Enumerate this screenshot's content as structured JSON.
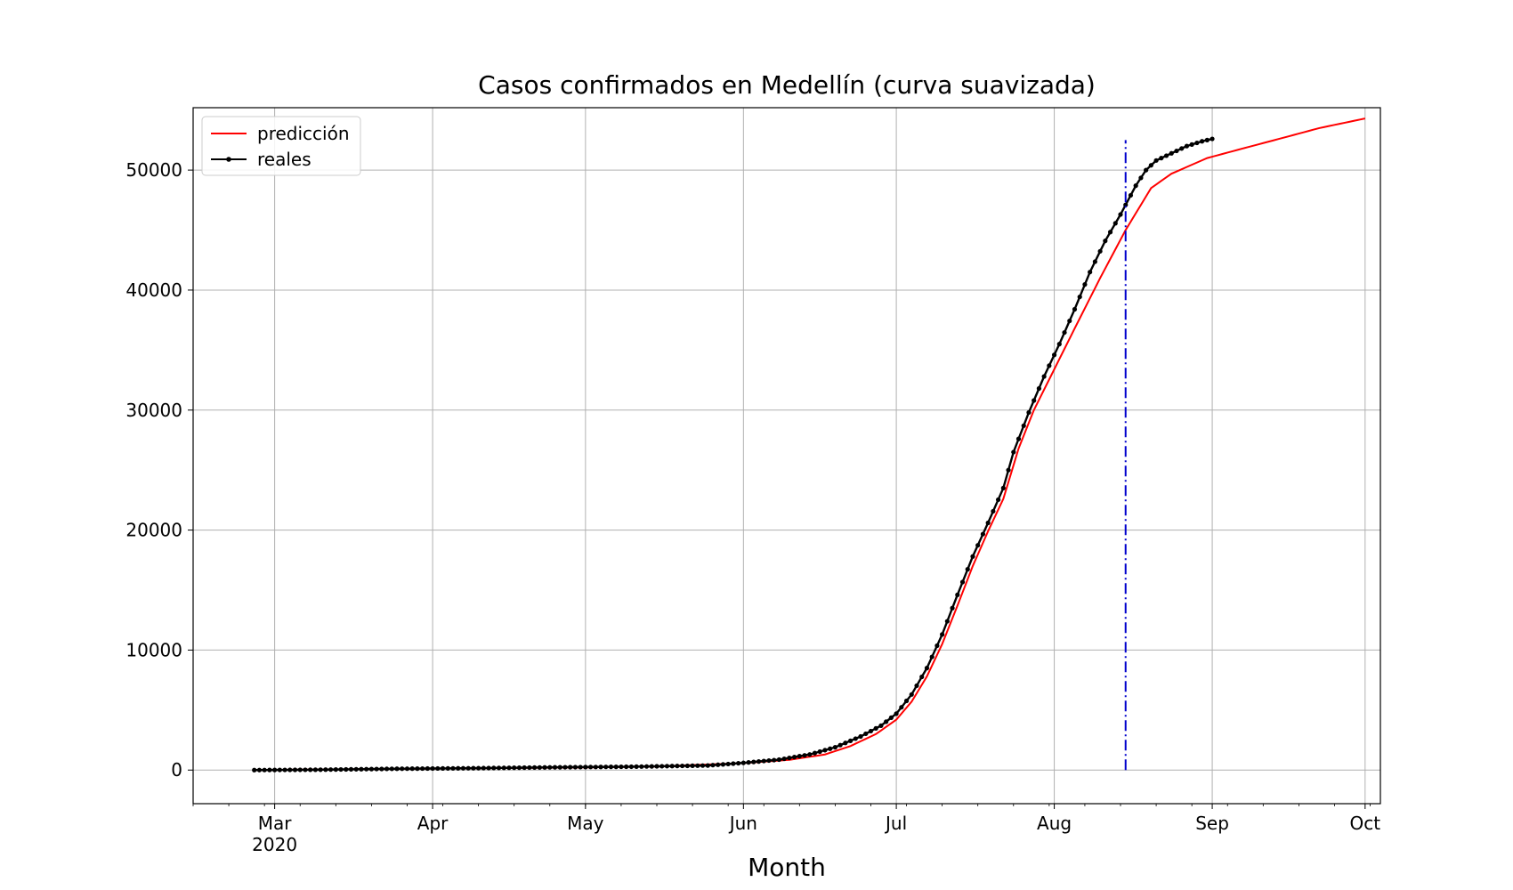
{
  "chart_data": {
    "type": "line",
    "title": "Casos confirmados en Medellín (curva suavizada)",
    "xlabel": "Month",
    "ylabel": "",
    "xlim": [
      "2020-02-14",
      "2020-10-04"
    ],
    "ylim": [
      -2800,
      55200
    ],
    "yticks": [
      0,
      10000,
      20000,
      30000,
      40000,
      50000
    ],
    "xticks": [
      {
        "date": "2020-03-01",
        "label": "Mar",
        "sublabel": "2020"
      },
      {
        "date": "2020-04-01",
        "label": "Apr"
      },
      {
        "date": "2020-05-01",
        "label": "May"
      },
      {
        "date": "2020-06-01",
        "label": "Jun"
      },
      {
        "date": "2020-07-01",
        "label": "Jul"
      },
      {
        "date": "2020-08-01",
        "label": "Aug"
      },
      {
        "date": "2020-09-01",
        "label": "Sep"
      },
      {
        "date": "2020-10-01",
        "label": "Oct"
      }
    ],
    "grid": true,
    "legend_position": "top-left",
    "vline": {
      "date": "2020-08-15",
      "y_range": [
        0,
        52500
      ],
      "color": "#0000cc",
      "style": "dash-dot"
    },
    "series": [
      {
        "name": "predicción",
        "color": "#ff0000",
        "marker": false,
        "points": [
          [
            "2020-02-26",
            0
          ],
          [
            "2020-03-15",
            60
          ],
          [
            "2020-04-01",
            120
          ],
          [
            "2020-04-15",
            170
          ],
          [
            "2020-05-01",
            220
          ],
          [
            "2020-05-15",
            300
          ],
          [
            "2020-06-01",
            580
          ],
          [
            "2020-06-10",
            850
          ],
          [
            "2020-06-17",
            1300
          ],
          [
            "2020-06-22",
            2000
          ],
          [
            "2020-06-27",
            3000
          ],
          [
            "2020-07-01",
            4200
          ],
          [
            "2020-07-04",
            5700
          ],
          [
            "2020-07-07",
            7800
          ],
          [
            "2020-07-10",
            10500
          ],
          [
            "2020-07-13",
            13700
          ],
          [
            "2020-07-16",
            17000
          ],
          [
            "2020-07-19",
            19900
          ],
          [
            "2020-07-22",
            22600
          ],
          [
            "2020-07-25",
            26800
          ],
          [
            "2020-07-28",
            30000
          ],
          [
            "2020-08-01",
            33400
          ],
          [
            "2020-08-05",
            36800
          ],
          [
            "2020-08-10",
            41000
          ],
          [
            "2020-08-15",
            45000
          ],
          [
            "2020-08-20",
            48500
          ],
          [
            "2020-08-24",
            49700
          ],
          [
            "2020-08-31",
            51000
          ],
          [
            "2020-09-07",
            51800
          ],
          [
            "2020-09-15",
            52700
          ],
          [
            "2020-09-22",
            53500
          ],
          [
            "2020-10-01",
            54300
          ]
        ]
      },
      {
        "name": "reales",
        "color": "#000000",
        "marker": true,
        "points": [
          [
            "2020-02-26",
            0
          ],
          [
            "2020-03-10",
            30
          ],
          [
            "2020-03-25",
            110
          ],
          [
            "2020-04-10",
            160
          ],
          [
            "2020-04-25",
            230
          ],
          [
            "2020-05-10",
            280
          ],
          [
            "2020-05-25",
            380
          ],
          [
            "2020-06-01",
            600
          ],
          [
            "2020-06-08",
            870
          ],
          [
            "2020-06-14",
            1300
          ],
          [
            "2020-06-19",
            1900
          ],
          [
            "2020-06-24",
            2800
          ],
          [
            "2020-06-28",
            3700
          ],
          [
            "2020-07-01",
            4700
          ],
          [
            "2020-07-04",
            6300
          ],
          [
            "2020-07-07",
            8500
          ],
          [
            "2020-07-10",
            11300
          ],
          [
            "2020-07-13",
            14600
          ],
          [
            "2020-07-16",
            17800
          ],
          [
            "2020-07-19",
            20600
          ],
          [
            "2020-07-22",
            23500
          ],
          [
            "2020-07-24",
            26500
          ],
          [
            "2020-07-27",
            29800
          ],
          [
            "2020-07-30",
            32800
          ],
          [
            "2020-08-02",
            35500
          ],
          [
            "2020-08-05",
            38400
          ],
          [
            "2020-08-08",
            41500
          ],
          [
            "2020-08-11",
            44100
          ],
          [
            "2020-08-14",
            46300
          ],
          [
            "2020-08-17",
            48700
          ],
          [
            "2020-08-19",
            50000
          ],
          [
            "2020-08-21",
            50800
          ],
          [
            "2020-08-24",
            51400
          ],
          [
            "2020-08-27",
            52000
          ],
          [
            "2020-08-30",
            52400
          ],
          [
            "2020-09-01",
            52600
          ]
        ]
      }
    ]
  }
}
